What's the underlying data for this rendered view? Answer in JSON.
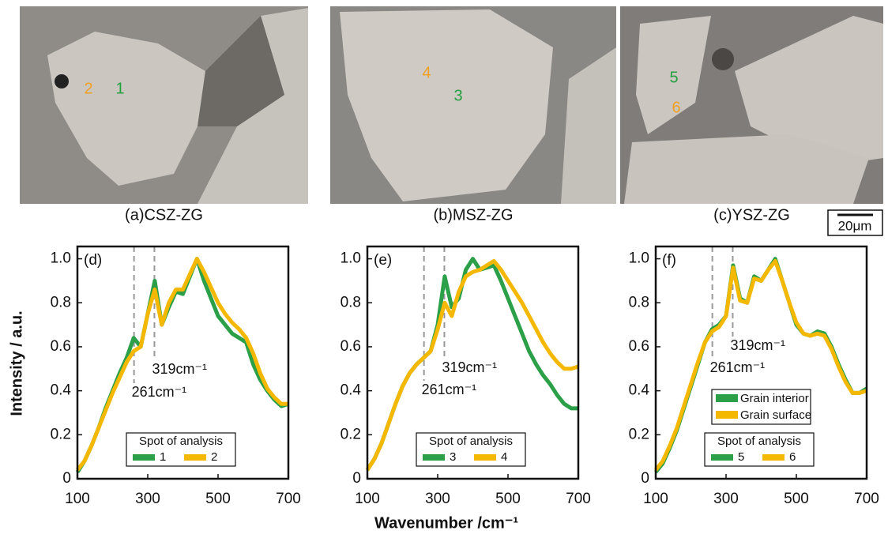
{
  "images": [
    {
      "caption": "(a)CSZ-ZG",
      "spots": [
        {
          "label": "2",
          "color": "#f0a020"
        },
        {
          "label": "1",
          "color": "#22a040"
        }
      ]
    },
    {
      "caption": "(b)MSZ-ZG",
      "spots": [
        {
          "label": "4",
          "color": "#f0a020"
        },
        {
          "label": "3",
          "color": "#22a040"
        }
      ]
    },
    {
      "caption": "(c)YSZ-ZG",
      "spots": [
        {
          "label": "5",
          "color": "#22a040"
        },
        {
          "label": "6",
          "color": "#f0a020"
        }
      ]
    }
  ],
  "scale_bar": "20μm",
  "chart_data": [
    {
      "type": "line",
      "panel": "(d)",
      "ylabel": "Intensity / a.u.",
      "x": [
        100,
        120,
        140,
        160,
        180,
        200,
        220,
        240,
        260,
        280,
        300,
        320,
        340,
        360,
        380,
        400,
        420,
        440,
        460,
        480,
        500,
        520,
        540,
        560,
        580,
        600,
        620,
        640,
        660,
        680,
        700
      ],
      "xlim": [
        100,
        700
      ],
      "xticks": [
        100,
        300,
        500,
        700
      ],
      "ylim": [
        0,
        1.02
      ],
      "yticks": [
        0,
        0.2,
        0.4,
        0.6,
        0.8,
        {
          "value": 1,
          "label": "1.0"
        }
      ],
      "annotations": [
        {
          "x": 261,
          "label": "261cm⁻¹"
        },
        {
          "x": 319,
          "label": "319cm⁻¹"
        }
      ],
      "legend_title": "Spot of analysis",
      "series": [
        {
          "name": "1",
          "color": "#2ca048",
          "values": [
            0.03,
            0.08,
            0.15,
            0.23,
            0.32,
            0.4,
            0.48,
            0.55,
            0.64,
            0.6,
            0.75,
            0.9,
            0.7,
            0.78,
            0.85,
            0.84,
            0.92,
            1.0,
            0.9,
            0.82,
            0.74,
            0.7,
            0.66,
            0.64,
            0.62,
            0.52,
            0.45,
            0.4,
            0.36,
            0.33,
            0.34
          ]
        },
        {
          "name": "2",
          "color": "#f5b800",
          "values": [
            0.04,
            0.08,
            0.15,
            0.23,
            0.31,
            0.39,
            0.46,
            0.53,
            0.58,
            0.6,
            0.75,
            0.86,
            0.7,
            0.8,
            0.86,
            0.86,
            0.93,
            1.0,
            0.94,
            0.87,
            0.8,
            0.75,
            0.71,
            0.68,
            0.64,
            0.57,
            0.48,
            0.41,
            0.37,
            0.34,
            0.34
          ]
        }
      ]
    },
    {
      "type": "line",
      "panel": "(e)",
      "xlabel": "Wavenumber /cm⁻¹",
      "x": [
        100,
        120,
        140,
        160,
        180,
        200,
        220,
        240,
        260,
        280,
        300,
        320,
        340,
        360,
        380,
        400,
        420,
        440,
        460,
        480,
        500,
        520,
        540,
        560,
        580,
        600,
        620,
        640,
        660,
        680,
        700
      ],
      "xlim": [
        100,
        700
      ],
      "xticks": [
        100,
        300,
        500,
        700
      ],
      "ylim": [
        0,
        1.02
      ],
      "yticks": [
        0,
        0.2,
        0.4,
        0.6,
        0.8,
        {
          "value": 1,
          "label": "1.0"
        }
      ],
      "annotations": [
        {
          "x": 261,
          "label": "261cm⁻¹"
        },
        {
          "x": 319,
          "label": "319cm⁻¹"
        }
      ],
      "legend_title": "Spot of analysis",
      "series": [
        {
          "name": "3",
          "color": "#2ca048",
          "values": [
            0.04,
            0.09,
            0.16,
            0.25,
            0.34,
            0.42,
            0.48,
            0.52,
            0.55,
            0.58,
            0.7,
            0.92,
            0.78,
            0.82,
            0.95,
            1.0,
            0.95,
            0.96,
            0.97,
            0.9,
            0.82,
            0.74,
            0.66,
            0.58,
            0.52,
            0.47,
            0.43,
            0.38,
            0.34,
            0.32,
            0.32
          ]
        },
        {
          "name": "4",
          "color": "#f5b800",
          "values": [
            0.04,
            0.09,
            0.16,
            0.25,
            0.34,
            0.42,
            0.48,
            0.52,
            0.55,
            0.58,
            0.68,
            0.8,
            0.74,
            0.85,
            0.92,
            0.94,
            0.95,
            0.97,
            0.99,
            0.95,
            0.9,
            0.85,
            0.8,
            0.74,
            0.68,
            0.62,
            0.57,
            0.53,
            0.5,
            0.5,
            0.51
          ]
        }
      ]
    },
    {
      "type": "line",
      "panel": "(f)",
      "x": [
        100,
        120,
        140,
        160,
        180,
        200,
        220,
        240,
        260,
        280,
        300,
        320,
        340,
        360,
        380,
        400,
        420,
        440,
        460,
        480,
        500,
        520,
        540,
        560,
        580,
        600,
        620,
        640,
        660,
        680,
        700
      ],
      "xlim": [
        100,
        700
      ],
      "xticks": [
        100,
        300,
        500,
        700
      ],
      "ylim": [
        0,
        1.02
      ],
      "yticks": [
        0,
        0.2,
        0.4,
        0.6,
        0.8,
        {
          "value": 1,
          "label": "1.0"
        }
      ],
      "annotations": [
        {
          "x": 261,
          "label": "261cm⁻¹"
        },
        {
          "x": 319,
          "label": "319cm⁻¹"
        }
      ],
      "legend_labels": [
        "Grain interior",
        "Grain surface"
      ],
      "legend_title": "Spot of analysis",
      "series": [
        {
          "name": "5",
          "color": "#2ca048",
          "values": [
            0.03,
            0.07,
            0.14,
            0.22,
            0.32,
            0.42,
            0.52,
            0.62,
            0.68,
            0.7,
            0.74,
            0.97,
            0.82,
            0.8,
            0.92,
            0.9,
            0.95,
            1.0,
            0.9,
            0.8,
            0.7,
            0.66,
            0.65,
            0.67,
            0.66,
            0.6,
            0.52,
            0.45,
            0.39,
            0.39,
            0.41
          ]
        },
        {
          "name": "6",
          "color": "#f5b800",
          "values": [
            0.04,
            0.08,
            0.15,
            0.23,
            0.33,
            0.43,
            0.53,
            0.62,
            0.67,
            0.69,
            0.74,
            0.96,
            0.81,
            0.8,
            0.91,
            0.9,
            0.95,
            0.99,
            0.9,
            0.8,
            0.71,
            0.66,
            0.65,
            0.66,
            0.65,
            0.59,
            0.51,
            0.44,
            0.39,
            0.39,
            0.4
          ]
        }
      ]
    }
  ]
}
